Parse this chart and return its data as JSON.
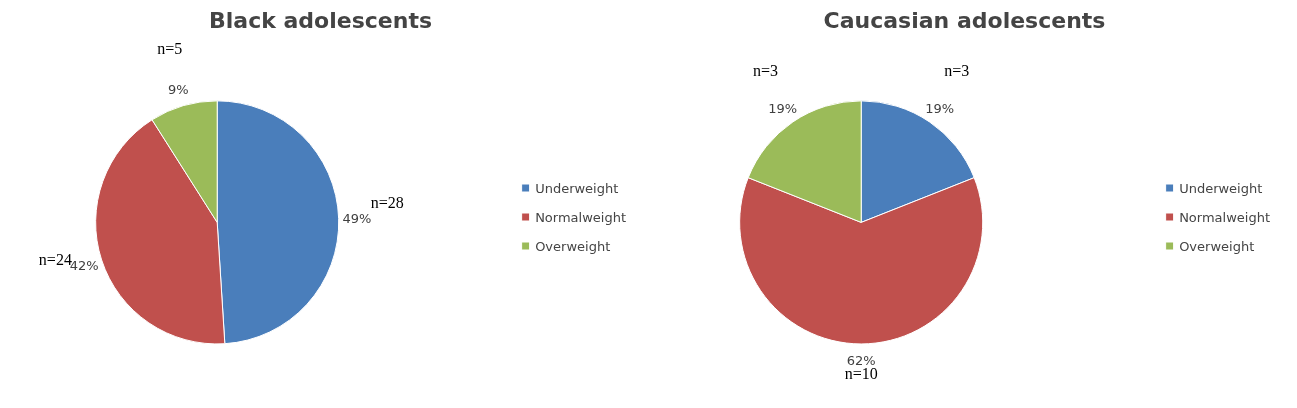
{
  "chart_data": [
    {
      "type": "pie",
      "title": "Black adolescents",
      "categories": [
        "Underweight",
        "Normalweight",
        "Overweight"
      ],
      "values": [
        49,
        42,
        9
      ],
      "colors": [
        "#4a7ebb",
        "#c0504d",
        "#9bbb59"
      ],
      "value_labels": [
        "49%",
        "42%",
        "9%"
      ],
      "annotations": [
        "n=28",
        "n=24",
        "n=5"
      ],
      "legend": "right"
    },
    {
      "type": "pie",
      "title": "Caucasian adolescents",
      "categories": [
        "Underweight",
        "Normalweight",
        "Overweight"
      ],
      "values": [
        19,
        62,
        19
      ],
      "colors": [
        "#4a7ebb",
        "#c0504d",
        "#9bbb59"
      ],
      "value_labels": [
        "19%",
        "62%",
        "19%"
      ],
      "annotations": [
        "n=3",
        "n=10",
        "n=3"
      ],
      "legend": "right"
    }
  ]
}
